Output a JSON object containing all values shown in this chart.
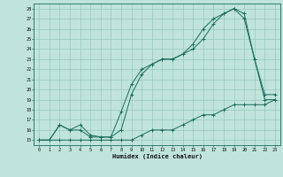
{
  "xlabel": "Humidex (Indice chaleur)",
  "bg_color": "#c0e4dc",
  "line_color": "#1a6b5a",
  "grid_color": "#98c8be",
  "xlim": [
    -0.5,
    23.5
  ],
  "ylim": [
    14.5,
    28.5
  ],
  "xticks": [
    0,
    1,
    2,
    3,
    4,
    5,
    6,
    7,
    8,
    9,
    10,
    11,
    12,
    13,
    14,
    15,
    16,
    17,
    18,
    19,
    20,
    21,
    22,
    23
  ],
  "yticks": [
    15,
    16,
    17,
    18,
    19,
    20,
    21,
    22,
    23,
    24,
    25,
    26,
    27,
    28
  ],
  "line1_x": [
    0,
    1,
    2,
    3,
    4,
    5,
    6,
    7,
    8,
    9,
    10,
    11,
    12,
    13,
    14,
    15,
    16,
    17,
    18,
    19,
    20,
    21,
    22,
    23
  ],
  "line1_y": [
    15,
    15,
    16.5,
    16,
    16.5,
    15.5,
    15.3,
    15.3,
    17.8,
    20.5,
    22,
    22.5,
    23,
    23,
    23.5,
    24,
    25,
    26.5,
    27.5,
    28,
    27.5,
    23,
    19,
    19
  ],
  "line2_x": [
    0,
    1,
    2,
    3,
    4,
    5,
    6,
    7,
    8,
    9,
    10,
    11,
    12,
    13,
    14,
    15,
    16,
    17,
    18,
    19,
    20,
    21,
    22,
    23
  ],
  "line2_y": [
    15,
    15,
    16.5,
    16,
    16,
    15.3,
    15.3,
    15.3,
    16,
    19.5,
    21.5,
    22.5,
    23,
    23,
    23.5,
    24.5,
    26,
    27,
    27.5,
    28,
    27,
    23,
    19.5,
    19.5
  ],
  "line3_x": [
    0,
    1,
    2,
    3,
    4,
    5,
    6,
    7,
    8,
    9,
    10,
    11,
    12,
    13,
    14,
    15,
    16,
    17,
    18,
    19,
    20,
    21,
    22,
    23
  ],
  "line3_y": [
    15,
    15,
    15,
    15,
    15,
    15,
    15,
    15,
    15,
    15,
    15.5,
    16,
    16,
    16,
    16.5,
    17,
    17.5,
    17.5,
    18,
    18.5,
    18.5,
    18.5,
    18.5,
    19
  ]
}
